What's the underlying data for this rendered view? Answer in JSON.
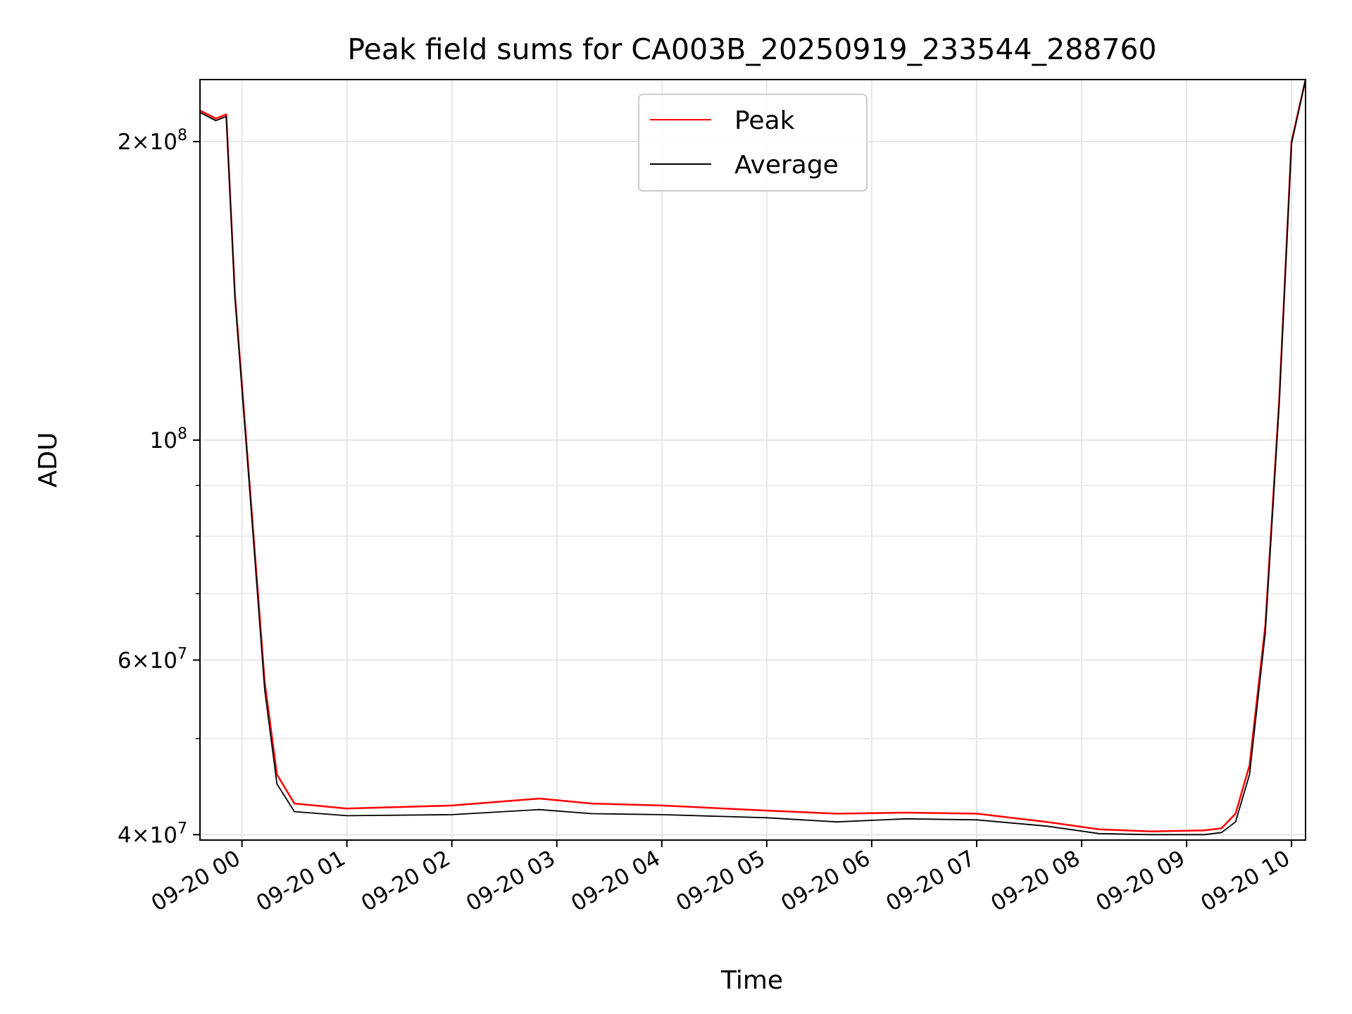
{
  "chart_data": {
    "type": "line",
    "title": "Peak field sums for CA003B_20250919_233544_288760",
    "xlabel": "Time",
    "ylabel": "ADU",
    "y_scale": "log",
    "grid": true,
    "legend_position": "top-center",
    "x_range": [
      "2025-09-19 23:36",
      "2025-09-20 10:08"
    ],
    "ylim": [
      39500000,
      231000000
    ],
    "x_ticks": [
      "09-20 00",
      "09-20 01",
      "09-20 02",
      "09-20 03",
      "09-20 04",
      "09-20 05",
      "09-20 06",
      "09-20 07",
      "09-20 08",
      "09-20 09",
      "09-20 10"
    ],
    "y_ticks": [
      {
        "value": 40000000,
        "mantissa": "4",
        "exponent": "7"
      },
      {
        "value": 60000000,
        "mantissa": "6",
        "exponent": "7"
      },
      {
        "value": 100000000,
        "mantissa": "",
        "exponent": "8"
      },
      {
        "value": 200000000,
        "mantissa": "2",
        "exponent": "8"
      }
    ],
    "series": [
      {
        "name": "Peak",
        "color": "#ff0000",
        "x": [
          "2025-09-19 23:36",
          "2025-09-19 23:45",
          "2025-09-19 23:51",
          "2025-09-19 23:56",
          "2025-09-20 00:04",
          "2025-09-20 00:13",
          "2025-09-20 00:20",
          "2025-09-20 00:30",
          "2025-09-20 01:00",
          "2025-09-20 02:00",
          "2025-09-20 02:50",
          "2025-09-20 03:20",
          "2025-09-20 04:00",
          "2025-09-20 05:00",
          "2025-09-20 05:40",
          "2025-09-20 06:20",
          "2025-09-20 07:00",
          "2025-09-20 07:40",
          "2025-09-20 08:10",
          "2025-09-20 08:40",
          "2025-09-20 09:10",
          "2025-09-20 09:20",
          "2025-09-20 09:28",
          "2025-09-20 09:36",
          "2025-09-20 09:45",
          "2025-09-20 09:53",
          "2025-09-20 10:00",
          "2025-09-20 10:08"
        ],
        "values": [
          215000000,
          211000000,
          213000000,
          140000000,
          92000000,
          57000000,
          46000000,
          43000000,
          42500000,
          42800000,
          43500000,
          43000000,
          42800000,
          42300000,
          42000000,
          42100000,
          42000000,
          41200000,
          40500000,
          40300000,
          40400000,
          40600000,
          42000000,
          47000000,
          65000000,
          110000000,
          200000000,
          231000000
        ]
      },
      {
        "name": "Average",
        "color": "#000000",
        "x": [
          "2025-09-19 23:36",
          "2025-09-19 23:45",
          "2025-09-19 23:51",
          "2025-09-19 23:56",
          "2025-09-20 00:04",
          "2025-09-20 00:13",
          "2025-09-20 00:20",
          "2025-09-20 00:30",
          "2025-09-20 01:00",
          "2025-09-20 02:00",
          "2025-09-20 02:50",
          "2025-09-20 03:20",
          "2025-09-20 04:00",
          "2025-09-20 05:00",
          "2025-09-20 05:40",
          "2025-09-20 06:20",
          "2025-09-20 07:00",
          "2025-09-20 07:40",
          "2025-09-20 08:10",
          "2025-09-20 08:40",
          "2025-09-20 09:10",
          "2025-09-20 09:20",
          "2025-09-20 09:28",
          "2025-09-20 09:36",
          "2025-09-20 09:45",
          "2025-09-20 09:53",
          "2025-09-20 10:00",
          "2025-09-20 10:08"
        ],
        "values": [
          214000000,
          210000000,
          212000000,
          139000000,
          91000000,
          56000000,
          45000000,
          42200000,
          41800000,
          41900000,
          42400000,
          42000000,
          41900000,
          41600000,
          41200000,
          41500000,
          41400000,
          40800000,
          40100000,
          40000000,
          40000000,
          40200000,
          41200000,
          46000000,
          64000000,
          109000000,
          199000000,
          231000000
        ]
      }
    ]
  }
}
